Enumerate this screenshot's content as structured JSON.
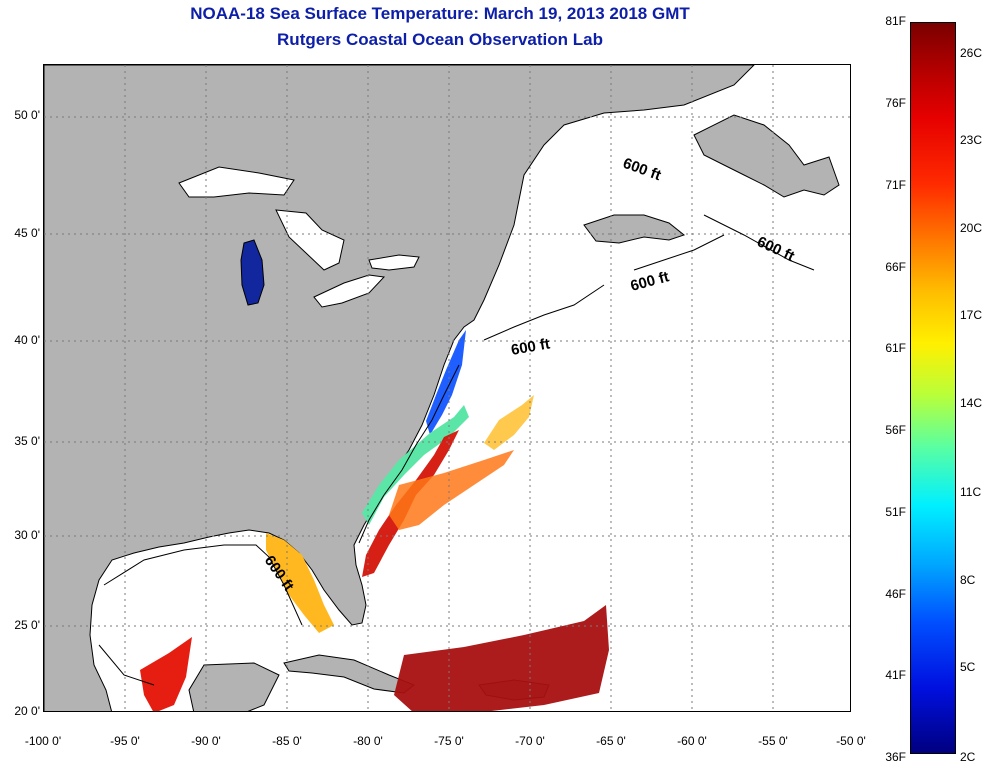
{
  "title": {
    "line1": "NOAA-18 Sea Surface Temperature:  March 19, 2013 2018 GMT",
    "line2": "Rutgers Coastal Ocean Observation Lab"
  },
  "map": {
    "lat_ticks": [
      "50 0'",
      "45 0'",
      "40 0'",
      "35 0'",
      "30 0'",
      "25 0'",
      "20 0'"
    ],
    "lon_ticks": [
      "-100 0'",
      "-95 0'",
      "-90 0'",
      "-85 0'",
      "-80 0'",
      "-75 0'",
      "-70 0'",
      "-65 0'",
      "-60 0'",
      "-55 0'",
      "-50 0'"
    ],
    "depth_label": "600 ft",
    "colors": {
      "land": "#b3b3b3",
      "ocean": "#ffffff",
      "title": "#0d1fa8"
    }
  },
  "colorbar": {
    "f_labels": [
      "81F",
      "76F",
      "71F",
      "66F",
      "61F",
      "56F",
      "51F",
      "46F",
      "41F",
      "36F"
    ],
    "c_labels": [
      "26C",
      "23C",
      "20C",
      "17C",
      "14C",
      "11C",
      "8C",
      "5C",
      "2C"
    ]
  }
}
